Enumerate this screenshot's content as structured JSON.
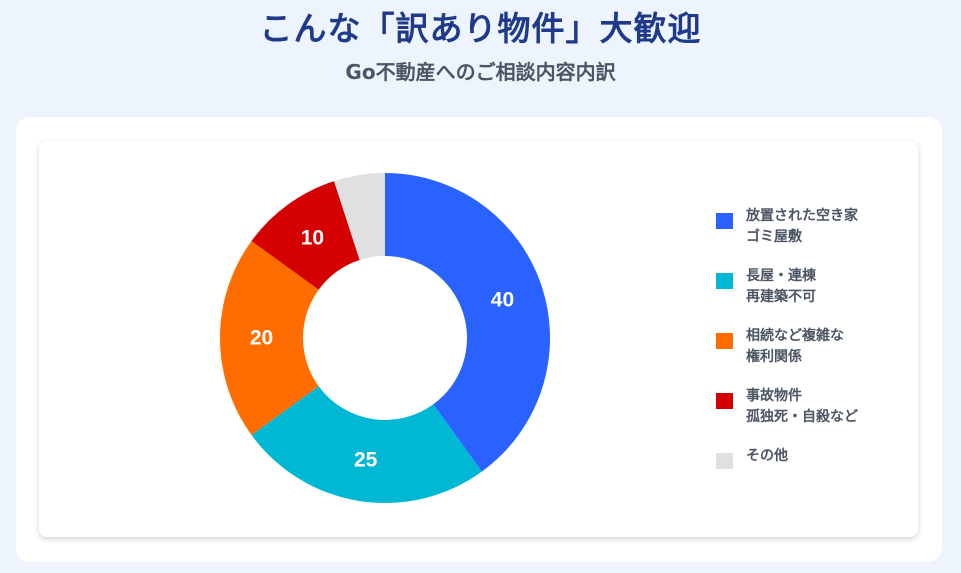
{
  "header": {
    "title": "こんな「訳あり物件」大歓迎",
    "subtitle": "Go不動産へのご相談内容内訳"
  },
  "chart_data": {
    "type": "pie",
    "title": "",
    "categories": [
      "放置された空き家 ゴミ屋敷",
      "長屋・連棟 再建築不可",
      "相続など複雑な 権利関係",
      "事故物件 孤独死・自殺など",
      "その他"
    ],
    "values": [
      40,
      25,
      20,
      10,
      5
    ],
    "data_labels": [
      "40",
      "25",
      "20",
      "10",
      ""
    ],
    "colors": [
      "#2962ff",
      "#00b8d4",
      "#ff6d00",
      "#d50000",
      "#e0e0e0"
    ],
    "donut": true,
    "legend_position": "right"
  },
  "legend": {
    "items": [
      {
        "line1": "放置された空き家",
        "line2": "ゴミ屋敷",
        "color": "#2962ff"
      },
      {
        "line1": "長屋・連棟",
        "line2": "再建築不可",
        "color": "#00b8d4"
      },
      {
        "line1": "相続など複雑な",
        "line2": "権利関係",
        "color": "#ff6d00"
      },
      {
        "line1": "事故物件",
        "line2": "孤独死・自殺など",
        "color": "#d50000"
      },
      {
        "line1": "その他",
        "line2": "",
        "color": "#e0e0e0"
      }
    ]
  }
}
